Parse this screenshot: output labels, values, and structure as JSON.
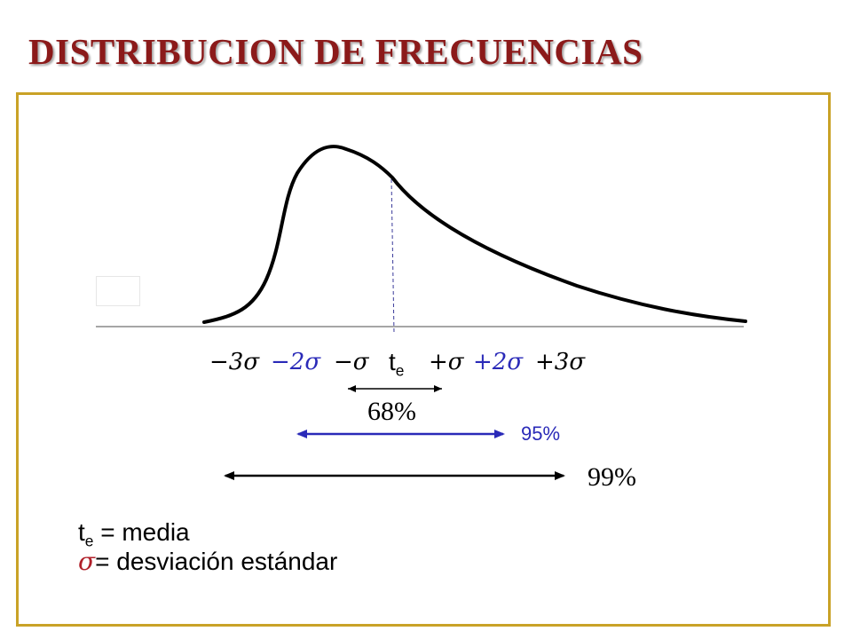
{
  "title": "DISTRIBUCION DE FRECUENCIAS",
  "axis_labels": {
    "minus3": "−3σ",
    "minus2": "−2σ",
    "minus1": "−σ",
    "te_main": "t",
    "te_sub": "e",
    "plus1": "+σ",
    "plus2": "+2σ",
    "plus3": "+3σ"
  },
  "ranges": {
    "r68": "68%",
    "r95": "95%",
    "r99": "99%"
  },
  "legend": {
    "te_main": "t",
    "te_sub": "e",
    "te_text": " = media",
    "sigma_symbol": "σ",
    "sigma_eq": "=",
    "sigma_text": " desviación estándar"
  },
  "colors": {
    "title": "#8b1a1a",
    "frame": "#c9a227",
    "blue": "#2a2ab8",
    "black": "#000000"
  }
}
